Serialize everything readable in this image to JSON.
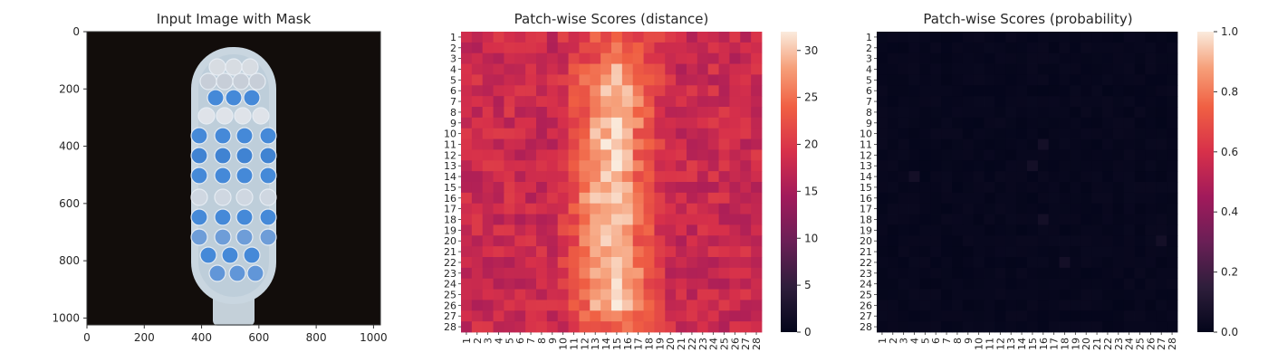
{
  "chart_data": [
    {
      "type": "image",
      "title": "Input Image with Mask",
      "x_ticks": [
        0,
        200,
        400,
        600,
        800,
        1000
      ],
      "y_ticks": [
        0,
        200,
        400,
        600,
        800,
        1000
      ],
      "xlim": [
        0,
        1024
      ],
      "ylim": [
        1024,
        0
      ],
      "image_description": "toothbrush head, photographed from above on a black background, with bristle tufts highlighted in blue by a mask"
    },
    {
      "type": "heatmap",
      "title": "Patch-wise Scores (distance)",
      "rows": 28,
      "cols": 28,
      "row_labels": [
        "1",
        "2",
        "3",
        "4",
        "5",
        "6",
        "7",
        "8",
        "9",
        "10",
        "11",
        "12",
        "13",
        "14",
        "15",
        "16",
        "17",
        "18",
        "19",
        "20",
        "21",
        "22",
        "23",
        "24",
        "25",
        "26",
        "27",
        "28"
      ],
      "col_labels": [
        "1",
        "2",
        "3",
        "4",
        "5",
        "6",
        "7",
        "8",
        "9",
        "10",
        "11",
        "12",
        "13",
        "14",
        "15",
        "16",
        "17",
        "18",
        "19",
        "20",
        "21",
        "22",
        "23",
        "24",
        "25",
        "26",
        "27",
        "28"
      ],
      "colorbar_range": [
        0,
        32
      ],
      "colorbar_ticks": [
        "0",
        "5",
        "10",
        "15",
        "20",
        "25",
        "30"
      ],
      "colormap": "rocket",
      "pattern": "values about 15-22 at the edges, rising to about 28-31 in a central vertical band (columns 11-18) shaped like the toothbrush head"
    },
    {
      "type": "heatmap",
      "title": "Patch-wise Scores (probability)",
      "rows": 28,
      "cols": 28,
      "row_labels": [
        "1",
        "2",
        "3",
        "4",
        "5",
        "6",
        "7",
        "8",
        "9",
        "10",
        "11",
        "12",
        "13",
        "14",
        "15",
        "16",
        "17",
        "18",
        "19",
        "20",
        "21",
        "22",
        "23",
        "24",
        "25",
        "26",
        "27",
        "28"
      ],
      "col_labels": [
        "1",
        "2",
        "3",
        "4",
        "5",
        "6",
        "7",
        "8",
        "9",
        "10",
        "11",
        "12",
        "13",
        "14",
        "15",
        "16",
        "17",
        "18",
        "19",
        "20",
        "21",
        "22",
        "23",
        "24",
        "25",
        "26",
        "27",
        "28"
      ],
      "colorbar_range": [
        0.0,
        1.0
      ],
      "colorbar_ticks": [
        "0.0",
        "0.2",
        "0.4",
        "0.6",
        "0.8",
        "1.0"
      ],
      "colormap": "rocket",
      "pattern": "nearly all values near 0.0 (dark), with faint spots of about 0.02-0.05"
    }
  ],
  "colors": {
    "background": "#ffffff",
    "photo_background": "#120d0b",
    "mask_blue": "#3f86d8",
    "brush_body": "#c9d6e0"
  }
}
